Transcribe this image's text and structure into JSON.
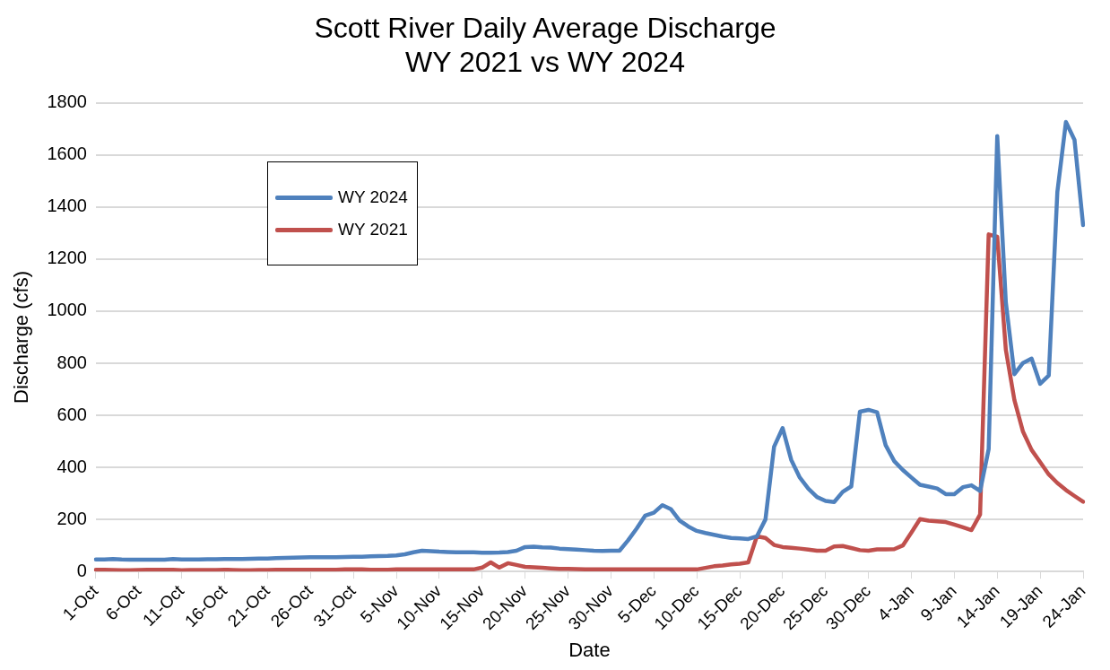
{
  "chart_data": {
    "type": "line",
    "title": "Scott River Daily Average Discharge\nWY 2021 vs WY 2024",
    "xlabel": "Date",
    "ylabel": "Discharge (cfs)",
    "categories": [
      "1-Oct",
      null,
      null,
      null,
      null,
      "6-Oct",
      null,
      null,
      null,
      null,
      "11-Oct",
      null,
      null,
      null,
      null,
      "16-Oct",
      null,
      null,
      null,
      null,
      "21-Oct",
      null,
      null,
      null,
      null,
      "26-Oct",
      null,
      null,
      null,
      null,
      "31-Oct",
      null,
      null,
      null,
      null,
      "5-Nov",
      null,
      null,
      null,
      null,
      "10-Nov",
      null,
      null,
      null,
      null,
      "15-Nov",
      null,
      null,
      null,
      null,
      "20-Nov",
      null,
      null,
      null,
      null,
      "25-Nov",
      null,
      null,
      null,
      null,
      "30-Nov",
      null,
      null,
      null,
      null,
      "5-Dec",
      null,
      null,
      null,
      null,
      "10-Dec",
      null,
      null,
      null,
      null,
      "15-Dec",
      null,
      null,
      null,
      null,
      "20-Dec",
      null,
      null,
      null,
      null,
      "25-Dec",
      null,
      null,
      null,
      null,
      "30-Dec",
      null,
      null,
      null,
      null,
      "4-Jan",
      null,
      null,
      null,
      null,
      "9-Jan",
      null,
      null,
      null,
      null,
      "14-Jan",
      null,
      null,
      null,
      null,
      "19-Jan",
      null,
      null,
      null,
      null,
      "24-Jan"
    ],
    "series": [
      {
        "name": "WY 2024",
        "color": "#4f81bd",
        "values": [
          46,
          46,
          48,
          46,
          45,
          45,
          45,
          45,
          45,
          48,
          46,
          46,
          46,
          47,
          47,
          48,
          48,
          48,
          49,
          50,
          50,
          51,
          52,
          53,
          54,
          55,
          55,
          55,
          55,
          56,
          57,
          57,
          58,
          59,
          60,
          62,
          66,
          74,
          80,
          78,
          76,
          75,
          74,
          74,
          74,
          72,
          72,
          73,
          75,
          80,
          94,
          95,
          93,
          92,
          88,
          86,
          84,
          82,
          80,
          79,
          80,
          80,
          120,
          165,
          215,
          226,
          255,
          239,
          196,
          173,
          156,
          148,
          141,
          134,
          129,
          127,
          125,
          135,
          200,
          479,
          551,
          429,
          361,
          318,
          286,
          271,
          267,
          306,
          327,
          614,
          621,
          612,
          485,
          424,
          390,
          361,
          333,
          326,
          319,
          297,
          297,
          324,
          331,
          309,
          470,
          1673,
          1034,
          758,
          801,
          818,
          721,
          753,
          1458,
          1727,
          1658,
          1331
        ]
      },
      {
        "name": "WY 2021",
        "color": "#c0504d",
        "values": [
          7,
          7,
          6,
          5,
          5,
          6,
          7,
          7,
          7,
          7,
          5,
          6,
          6,
          6,
          6,
          7,
          6,
          5,
          5,
          6,
          6,
          7,
          7,
          7,
          7,
          7,
          7,
          7,
          7,
          8,
          8,
          8,
          7,
          7,
          7,
          8,
          8,
          8,
          8,
          8,
          8,
          8,
          8,
          8,
          8,
          15,
          35,
          15,
          32,
          25,
          18,
          16,
          14,
          12,
          10,
          10,
          9,
          8,
          8,
          8,
          8,
          8,
          8,
          8,
          8,
          8,
          8,
          8,
          8,
          8,
          8,
          14,
          20,
          23,
          27,
          30,
          35,
          135,
          129,
          102,
          94,
          91,
          88,
          84,
          80,
          80,
          96,
          98,
          90,
          82,
          80,
          85,
          85,
          86,
          100,
          150,
          201,
          195,
          193,
          190,
          180,
          170,
          159,
          219,
          1295,
          1286,
          852,
          658,
          537,
          467,
          420,
          373,
          340,
          313,
          290,
          268
        ]
      }
    ],
    "ylim": [
      0,
      1800
    ],
    "yticks": [
      0,
      200,
      400,
      600,
      800,
      1000,
      1200,
      1400,
      1600,
      1800
    ],
    "grid": "y",
    "legend": "top left",
    "marker": "none",
    "line_style": "solid"
  }
}
